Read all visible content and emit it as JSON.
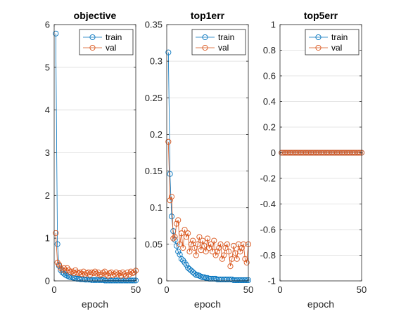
{
  "colors": {
    "train": "#0072BD",
    "val": "#D95319",
    "grid": "#dcdcdc",
    "axis": "#262626"
  },
  "chart_data": [
    {
      "type": "line",
      "title": "objective",
      "xlabel": "epoch",
      "ylabel": "",
      "xlim": [
        0,
        50
      ],
      "ylim": [
        0,
        6
      ],
      "xticks": [
        0,
        50
      ],
      "xtick_labels": [
        "0",
        "50"
      ],
      "yticks": [
        0,
        1,
        2,
        3,
        4,
        5,
        6
      ],
      "ytick_labels": [
        "0",
        "1",
        "2",
        "3",
        "4",
        "5",
        "6"
      ],
      "grid": true,
      "legend_position": "top-right",
      "marker": "circle",
      "series": [
        {
          "name": "train",
          "color_key": "train",
          "x": [
            1,
            2,
            3,
            4,
            5,
            6,
            7,
            8,
            9,
            10,
            11,
            12,
            13,
            14,
            15,
            16,
            17,
            18,
            19,
            20,
            21,
            22,
            23,
            24,
            25,
            26,
            27,
            28,
            29,
            30,
            31,
            32,
            33,
            34,
            35,
            36,
            37,
            38,
            39,
            40,
            41,
            42,
            43,
            44,
            45,
            46,
            47,
            48,
            49,
            50
          ],
          "y": [
            5.79,
            0.86,
            0.35,
            0.25,
            0.2,
            0.17,
            0.14,
            0.12,
            0.1,
            0.09,
            0.08,
            0.07,
            0.06,
            0.05,
            0.05,
            0.04,
            0.04,
            0.04,
            0.03,
            0.03,
            0.03,
            0.03,
            0.02,
            0.02,
            0.02,
            0.02,
            0.02,
            0.02,
            0.02,
            0.02,
            0.01,
            0.01,
            0.01,
            0.01,
            0.01,
            0.01,
            0.01,
            0.01,
            0.01,
            0.01,
            0.01,
            0.01,
            0.01,
            0.01,
            0.01,
            0.01,
            0.01,
            0.01,
            0.01,
            0.01
          ]
        },
        {
          "name": "val",
          "color_key": "val",
          "x": [
            1,
            2,
            3,
            4,
            5,
            6,
            7,
            8,
            9,
            10,
            11,
            12,
            13,
            14,
            15,
            16,
            17,
            18,
            19,
            20,
            21,
            22,
            23,
            24,
            25,
            26,
            27,
            28,
            29,
            30,
            31,
            32,
            33,
            34,
            35,
            36,
            37,
            38,
            39,
            40,
            41,
            42,
            43,
            44,
            45,
            46,
            47,
            48,
            49,
            50
          ],
          "y": [
            1.12,
            0.43,
            0.38,
            0.3,
            0.26,
            0.3,
            0.24,
            0.3,
            0.25,
            0.2,
            0.22,
            0.18,
            0.25,
            0.2,
            0.18,
            0.2,
            0.16,
            0.22,
            0.15,
            0.18,
            0.2,
            0.14,
            0.2,
            0.18,
            0.22,
            0.17,
            0.2,
            0.14,
            0.15,
            0.19,
            0.22,
            0.15,
            0.12,
            0.18,
            0.2,
            0.13,
            0.16,
            0.2,
            0.15,
            0.18,
            0.12,
            0.2,
            0.16,
            0.12,
            0.2,
            0.15,
            0.22,
            0.18,
            0.2,
            0.24
          ]
        }
      ]
    },
    {
      "type": "line",
      "title": "top1err",
      "xlabel": "epoch",
      "ylabel": "",
      "xlim": [
        0,
        50
      ],
      "ylim": [
        0,
        0.35
      ],
      "xticks": [
        0,
        50
      ],
      "xtick_labels": [
        "0",
        "50"
      ],
      "yticks": [
        0,
        0.05,
        0.1,
        0.15,
        0.2,
        0.25,
        0.3,
        0.35
      ],
      "ytick_labels": [
        "0",
        "0.05",
        "0.1",
        "0.15",
        "0.2",
        "0.25",
        "0.3",
        "0.35"
      ],
      "grid": true,
      "legend_position": "top-right",
      "marker": "circle",
      "series": [
        {
          "name": "train",
          "color_key": "train",
          "x": [
            1,
            2,
            3,
            4,
            5,
            6,
            7,
            8,
            9,
            10,
            11,
            12,
            13,
            14,
            15,
            16,
            17,
            18,
            19,
            20,
            21,
            22,
            23,
            24,
            25,
            26,
            27,
            28,
            29,
            30,
            31,
            32,
            33,
            34,
            35,
            36,
            37,
            38,
            39,
            40,
            41,
            42,
            43,
            44,
            45,
            46,
            47,
            48,
            49,
            50
          ],
          "y": [
            0.312,
            0.146,
            0.088,
            0.068,
            0.056,
            0.048,
            0.04,
            0.036,
            0.03,
            0.028,
            0.025,
            0.022,
            0.018,
            0.016,
            0.014,
            0.012,
            0.01,
            0.008,
            0.008,
            0.007,
            0.006,
            0.005,
            0.005,
            0.004,
            0.004,
            0.003,
            0.003,
            0.003,
            0.003,
            0.003,
            0.002,
            0.002,
            0.002,
            0.002,
            0.002,
            0.002,
            0.002,
            0.002,
            0.002,
            0.002,
            0.001,
            0.001,
            0.001,
            0.001,
            0.001,
            0.001,
            0.001,
            0.001,
            0.001,
            0.001
          ]
        },
        {
          "name": "val",
          "color_key": "val",
          "x": [
            1,
            2,
            3,
            4,
            5,
            6,
            7,
            8,
            9,
            10,
            11,
            12,
            13,
            14,
            15,
            16,
            17,
            18,
            19,
            20,
            21,
            22,
            23,
            24,
            25,
            26,
            27,
            28,
            29,
            30,
            31,
            32,
            33,
            34,
            35,
            36,
            37,
            38,
            39,
            40,
            41,
            42,
            43,
            44,
            45,
            46,
            47,
            48,
            49,
            50
          ],
          "y": [
            0.19,
            0.11,
            0.115,
            0.058,
            0.06,
            0.078,
            0.083,
            0.05,
            0.065,
            0.045,
            0.07,
            0.06,
            0.065,
            0.04,
            0.05,
            0.055,
            0.045,
            0.035,
            0.05,
            0.06,
            0.042,
            0.055,
            0.048,
            0.04,
            0.058,
            0.045,
            0.05,
            0.04,
            0.055,
            0.035,
            0.04,
            0.045,
            0.05,
            0.03,
            0.035,
            0.045,
            0.05,
            0.04,
            0.02,
            0.03,
            0.048,
            0.038,
            0.03,
            0.05,
            0.04,
            0.045,
            0.05,
            0.03,
            0.025,
            0.05
          ]
        }
      ]
    },
    {
      "type": "line",
      "title": "top5err",
      "xlabel": "epoch",
      "ylabel": "",
      "xlim": [
        0,
        50
      ],
      "ylim": [
        -1,
        1
      ],
      "xticks": [
        0,
        50
      ],
      "xtick_labels": [
        "0",
        "50"
      ],
      "yticks": [
        -1,
        -0.8,
        -0.6,
        -0.4,
        -0.2,
        0,
        0.2,
        0.4,
        0.6,
        0.8,
        1
      ],
      "ytick_labels": [
        "-1",
        "-0.8",
        "-0.6",
        "-0.4",
        "-0.2",
        "0",
        "0.2",
        "0.4",
        "0.6",
        "0.8",
        "1"
      ],
      "grid": true,
      "legend_position": "top-right",
      "marker": "circle",
      "series": [
        {
          "name": "train",
          "color_key": "train",
          "x": [
            1,
            2,
            3,
            4,
            5,
            6,
            7,
            8,
            9,
            10,
            11,
            12,
            13,
            14,
            15,
            16,
            17,
            18,
            19,
            20,
            21,
            22,
            23,
            24,
            25,
            26,
            27,
            28,
            29,
            30,
            31,
            32,
            33,
            34,
            35,
            36,
            37,
            38,
            39,
            40,
            41,
            42,
            43,
            44,
            45,
            46,
            47,
            48,
            49,
            50
          ],
          "y": [
            0,
            0,
            0,
            0,
            0,
            0,
            0,
            0,
            0,
            0,
            0,
            0,
            0,
            0,
            0,
            0,
            0,
            0,
            0,
            0,
            0,
            0,
            0,
            0,
            0,
            0,
            0,
            0,
            0,
            0,
            0,
            0,
            0,
            0,
            0,
            0,
            0,
            0,
            0,
            0,
            0,
            0,
            0,
            0,
            0,
            0,
            0,
            0,
            0,
            0
          ]
        },
        {
          "name": "val",
          "color_key": "val",
          "x": [
            1,
            2,
            3,
            4,
            5,
            6,
            7,
            8,
            9,
            10,
            11,
            12,
            13,
            14,
            15,
            16,
            17,
            18,
            19,
            20,
            21,
            22,
            23,
            24,
            25,
            26,
            27,
            28,
            29,
            30,
            31,
            32,
            33,
            34,
            35,
            36,
            37,
            38,
            39,
            40,
            41,
            42,
            43,
            44,
            45,
            46,
            47,
            48,
            49,
            50
          ],
          "y": [
            0,
            0,
            0,
            0,
            0,
            0,
            0,
            0,
            0,
            0,
            0,
            0,
            0,
            0,
            0,
            0,
            0,
            0,
            0,
            0,
            0,
            0,
            0,
            0,
            0,
            0,
            0,
            0,
            0,
            0,
            0,
            0,
            0,
            0,
            0,
            0,
            0,
            0,
            0,
            0,
            0,
            0,
            0,
            0,
            0,
            0,
            0,
            0,
            0,
            0
          ]
        }
      ]
    }
  ]
}
